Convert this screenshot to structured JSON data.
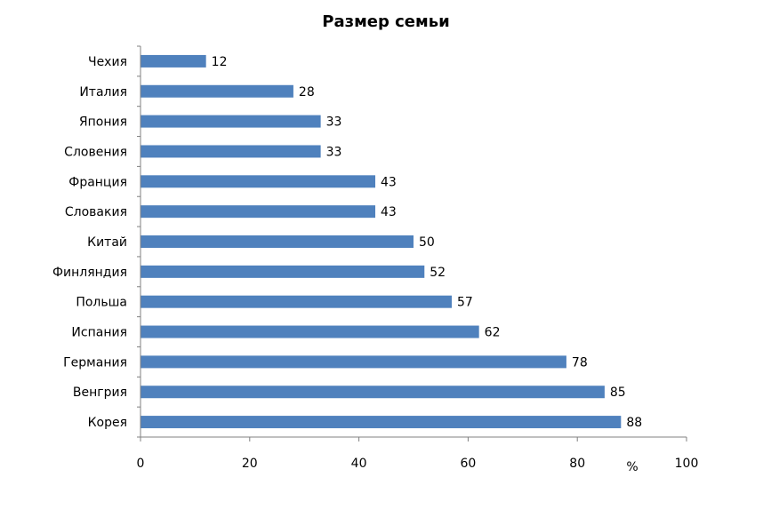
{
  "chart_data": {
    "type": "bar",
    "orientation": "horizontal",
    "title": "Размер семьи",
    "unit_label": "%",
    "categories": [
      "Чехия",
      "Италия",
      "Япония",
      "Словения",
      "Франция",
      "Словакия",
      "Китай",
      "Финляндия",
      "Польша",
      "Испания",
      "Германия",
      "Венгрия",
      "Корея"
    ],
    "values": [
      12,
      28,
      33,
      33,
      43,
      43,
      50,
      52,
      57,
      62,
      78,
      85,
      88
    ],
    "xlim": [
      0,
      100
    ],
    "x_ticks": [
      "0",
      "20",
      "40",
      "60",
      "80",
      "100"
    ],
    "grid": false,
    "legend": "none",
    "bar_color": "#4f81bd",
    "data_labels": true
  }
}
